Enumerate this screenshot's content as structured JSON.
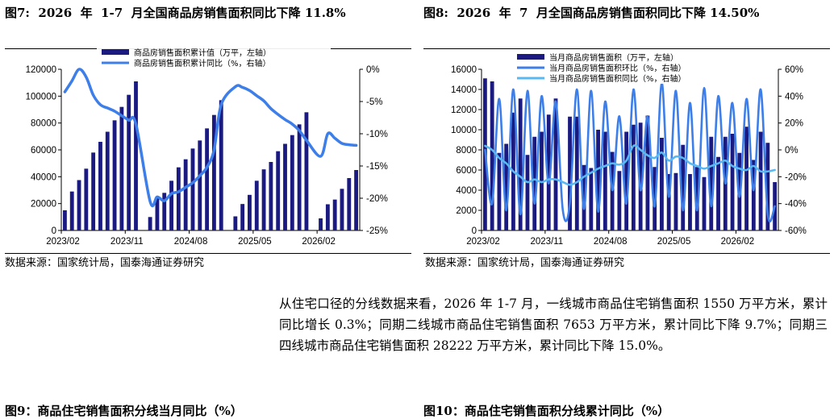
{
  "figure7": {
    "title": "图7:  2026  年  1-7  月全国商品房销售面积同比下降 11.8%",
    "source": "数据来源：国家统计局，国泰海通证券研究"
  },
  "figure8": {
    "title": "图8:  2026  年  7  月全国商品房销售面积同比下降 14.50%",
    "source": "数据来源：国家统计局，国泰海通证券研究"
  },
  "paragraph": "从住宅口径的分线数据来看，2026 年 1-7 月，一线城市商品住宅销售面积 1550 万平方米，累计同比增长 0.3%；同期二线城市商品住宅销售面积 7653 万平方米，累计同比下降 9.7%；同期三四线城市商品住宅销售面积 28222 万平方米，累计同比下降 15.0%。",
  "figure9": {
    "title": "图9：商品住宅销售面积分线当月同比（%）"
  },
  "figure10": {
    "title": "图10：商品住宅销售面积分线累计同比（%）"
  },
  "chart_data": [
    {
      "type": "bar",
      "x_tick_labels": [
        "2023/02",
        "2023/11",
        "2024/08",
        "2025/05",
        "2026/02"
      ],
      "left_axis": {
        "ylim": [
          0,
          120000
        ],
        "ticks": [
          "0",
          "20000",
          "40000",
          "60000",
          "80000",
          "100000",
          "120000"
        ]
      },
      "right_axis": {
        "ylim": [
          -25,
          0
        ],
        "ticks": [
          "-25%",
          "-20%",
          "-15%",
          "-10%",
          "-5%",
          "0%"
        ]
      },
      "legend_placement": "top-center",
      "colors": {
        "bars": "#1a1a80",
        "line": "#3d7ee8"
      },
      "series": [
        {
          "name": "商品房销售面积累计值（万平，左轴）",
          "type": "bar",
          "axis": "left",
          "values": [
            15000,
            29000,
            37500,
            46000,
            58000,
            66000,
            73500,
            82000,
            92000,
            101000,
            111000,
            null,
            10000,
            24000,
            28000,
            37000,
            47000,
            53000,
            61000,
            67000,
            76000,
            86000,
            97000,
            null,
            10500,
            19700,
            26500,
            37000,
            45500,
            51000,
            59000,
            64500,
            71000,
            79000,
            88000,
            null,
            9000,
            19500,
            23000,
            31000,
            39000,
            45000
          ]
        },
        {
          "name": "商品房销售面积累计同比（%，右轴）",
          "type": "line",
          "axis": "right",
          "values": [
            -3.5,
            -1.8,
            0.0,
            -1.2,
            -4.0,
            -5.5,
            -6.0,
            -6.5,
            -7.2,
            -7.9,
            -8.5,
            null,
            -20.5,
            -19.8,
            -20.4,
            -19.3,
            -19.0,
            -18.3,
            -17.6,
            -16.5,
            -15.2,
            -12.5,
            -5.5,
            null,
            -2.7,
            -2.8,
            -3.3,
            -4.1,
            -4.9,
            -6.1,
            -7.0,
            -7.8,
            -8.5,
            -9.5,
            -11.0,
            null,
            -13.5,
            -10.0,
            -10.7,
            -11.5,
            -11.7,
            -11.8
          ]
        }
      ]
    },
    {
      "type": "bar",
      "x_tick_labels": [
        "2023/02",
        "2023/11",
        "2024/08",
        "2025/05",
        "2026/02"
      ],
      "left_axis": {
        "ylim": [
          0,
          16000
        ],
        "ticks": [
          "0",
          "2000",
          "4000",
          "6000",
          "8000",
          "10000",
          "12000",
          "14000",
          "16000"
        ]
      },
      "right_axis": {
        "ylim": [
          -60,
          60
        ],
        "ticks": [
          "-60%",
          "-40%",
          "-20%",
          "0%",
          "20%",
          "40%",
          "60%"
        ]
      },
      "legend_placement": "top-center",
      "colors": {
        "bars": "#1a1a80",
        "mom_line": "#3d7ee8",
        "yoy_line": "#5ab8f0"
      },
      "series": [
        {
          "name": "当月商品房销售面积（万平，左轴）",
          "type": "bar",
          "axis": "left",
          "values": [
            15100,
            14800,
            7700,
            8600,
            11700,
            13100,
            7500,
            9300,
            9800,
            11500,
            13100,
            null,
            11300,
            11300,
            6500,
            6200,
            10000,
            9800,
            7800,
            5900,
            9800,
            10500,
            10700,
            11400,
            6300,
            9200,
            5600,
            5700,
            8500,
            5600,
            6300,
            5300,
            9300,
            7300,
            9300,
            9600,
            7700,
            10300,
            7000,
            9800,
            8700,
            4800
          ]
        },
        {
          "name": "当月商品房销售面积环比（%，右轴）",
          "type": "line",
          "axis": "right",
          "values": [
            0,
            -40,
            38,
            -45,
            45,
            -48,
            44,
            -40,
            40,
            -25,
            36,
            -45,
            -40,
            45,
            -44,
            44,
            -46,
            36,
            -30,
            25,
            -40,
            45,
            -30,
            25,
            -42,
            50,
            -35,
            44,
            -45,
            35,
            -45,
            46,
            -42,
            40,
            -25,
            35,
            -35,
            38,
            -30,
            45,
            -48,
            -42
          ]
        },
        {
          "name": "当月商品房销售面积同比（%，右轴）",
          "type": "line",
          "axis": "right",
          "values": [
            3,
            0,
            -6,
            -10,
            -16,
            -20,
            -24,
            -22,
            -24,
            -22,
            -22,
            -24,
            -26,
            -24,
            -20,
            -17,
            -14,
            -12,
            -10,
            -11,
            -8,
            3,
            0,
            -4,
            -6,
            -2,
            -8,
            -5,
            -6,
            -10,
            -12,
            -14,
            -12,
            -10,
            -8,
            -12,
            -14,
            -15,
            -12,
            -16,
            -16,
            -15
          ]
        }
      ]
    }
  ]
}
